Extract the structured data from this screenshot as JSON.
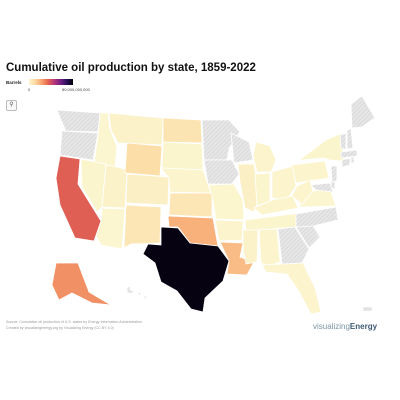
{
  "title": "Cumulative oil production by state, 1859-2022",
  "legend": {
    "label": "Barrels",
    "min_label": "0",
    "max_label": "80,000,000,000"
  },
  "zoom_icon": "magnifier-icon",
  "footer": {
    "line1": "Source: Cumulative oil production of U.S. states by Energy Information Administration",
    "line2": "Created by visualizingenergy.org by Visualizing Energy (CC BY 4.0)"
  },
  "brand": {
    "prefix": "visualizing",
    "suffix": "Energy"
  },
  "colors": {
    "no_data": "#e8e8e8",
    "scale": [
      "#fbf6cf",
      "#fcd9a1",
      "#f8a36f",
      "#e6664f",
      "#b73779",
      "#721f81",
      "#2c115f",
      "#000004"
    ]
  },
  "map_data": {
    "type": "choropleth",
    "unit": "Barrels",
    "range": [
      0,
      80000000000
    ],
    "levels": {
      "Texas": 0.98,
      "California": 0.45,
      "Alaska": 0.33,
      "Oklahoma": 0.25,
      "Louisiana": 0.22,
      "Wyoming": 0.12,
      "North Dakota": 0.09,
      "Kansas": 0.08,
      "New Mexico": 0.08,
      "Illinois": 0.03,
      "Colorado": 0.03,
      "Montana": 0.02,
      "Utah": 0.02,
      "Mississippi": 0.02,
      "Michigan": 0.01,
      "Ohio": 0.01,
      "Arkansas": 0.01,
      "Pennsylvania": 0.01,
      "Kentucky": 0.01,
      "West Virginia": 0.01,
      "Alabama": 0.01,
      "Florida": 0.01,
      "Nebraska": 0.01,
      "Indiana": 0.005,
      "New York": 0.005,
      "South Dakota": 0.003,
      "Tennessee": 0.003,
      "Nevada": 0.003,
      "Arizona": 0.001,
      "Missouri": 0.002,
      "Virginia": 0.001,
      "Idaho": 0,
      "Oregon": null,
      "Washington": null,
      "Minnesota": null,
      "Iowa": null,
      "Wisconsin": null,
      "Georgia": null,
      "North Carolina": null,
      "South Carolina": null,
      "Maine": null,
      "New Hampshire": null,
      "Vermont": null,
      "Massachusetts": null,
      "Connecticut": null,
      "Rhode Island": null,
      "New Jersey": null,
      "Delaware": null,
      "Maryland": null,
      "Hawaii": null
    }
  }
}
